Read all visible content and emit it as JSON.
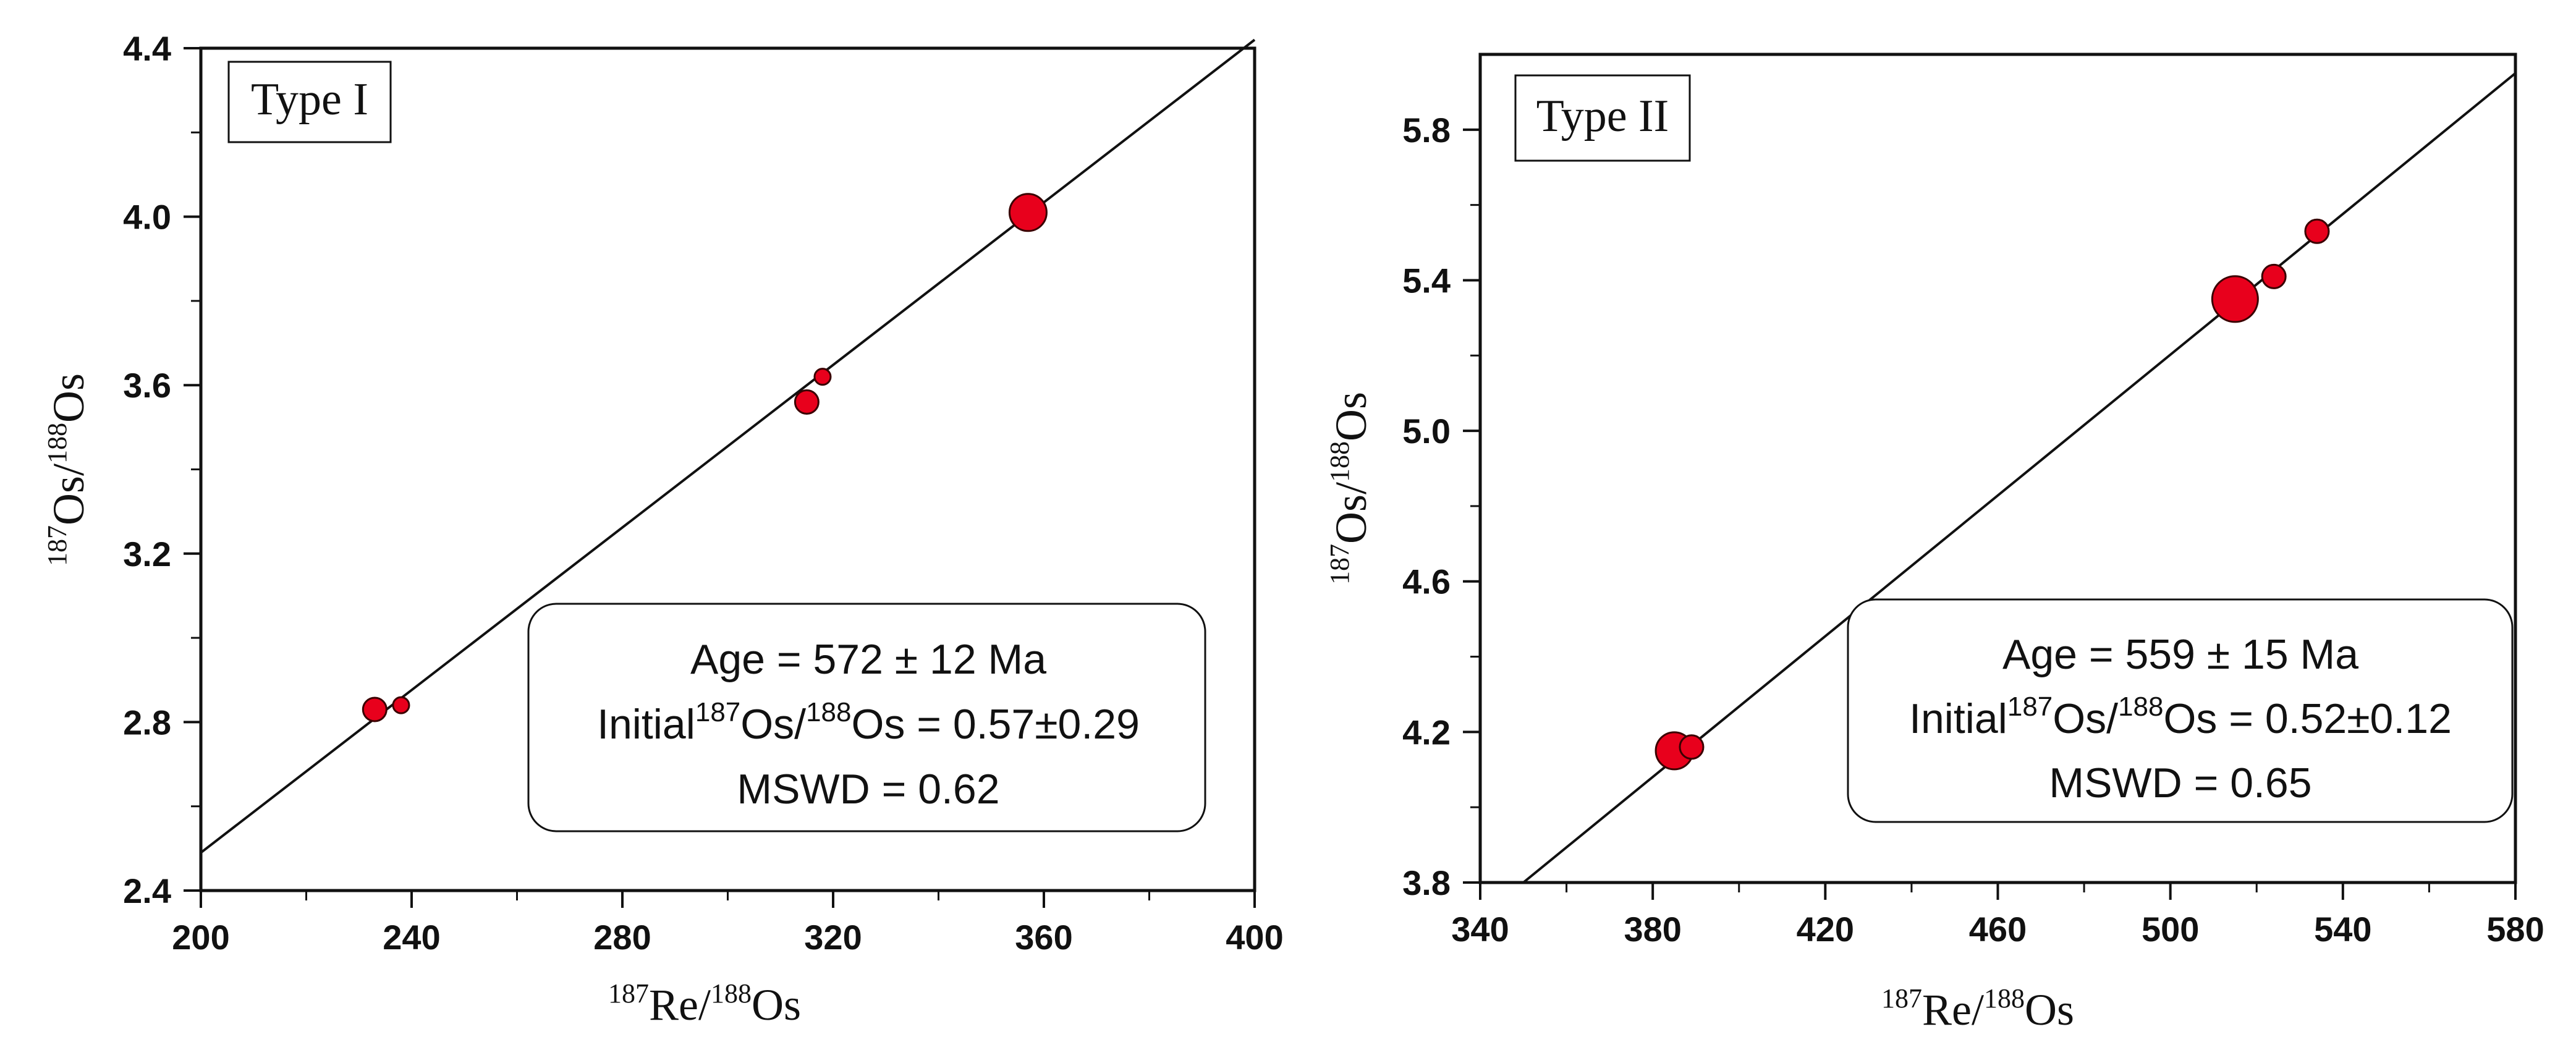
{
  "chart_data": [
    {
      "type": "scatter",
      "panel_label": "Type I",
      "xlabel": {
        "sup1": "187",
        "base1": "Re/",
        "sup2": "188",
        "base2": "Os"
      },
      "ylabel": {
        "sup1": "187",
        "base1": "Os/",
        "sup2": "188",
        "base2": "Os"
      },
      "xlim": [
        200,
        400
      ],
      "ylim": [
        2.4,
        4.4
      ],
      "xticks": [
        "200",
        "240",
        "280",
        "320",
        "360",
        "400"
      ],
      "yticks": [
        "2.4",
        "2.8",
        "3.2",
        "3.6",
        "4.0",
        "4.4"
      ],
      "points": [
        {
          "x": 233,
          "y": 2.83,
          "size": "small"
        },
        {
          "x": 238,
          "y": 2.84,
          "size": "tiny"
        },
        {
          "x": 315,
          "y": 3.56,
          "size": "small"
        },
        {
          "x": 318,
          "y": 3.62,
          "size": "tiny"
        },
        {
          "x": 357,
          "y": 4.01,
          "size": "large"
        }
      ],
      "isochron": {
        "x1": 200,
        "y1": 2.49,
        "x2": 400,
        "y2": 4.42
      },
      "annotation": {
        "age": "Age = 572 ± 12 Ma",
        "initial_prefix": "Initial",
        "initial_sup1": "187",
        "initial_mid": "Os/",
        "initial_sup2": "188",
        "initial_suffix": "Os = 0.57±0.29",
        "mswd": "MSWD = 0.62"
      }
    },
    {
      "type": "scatter",
      "panel_label": "Type II",
      "xlabel": {
        "sup1": "187",
        "base1": "Re/",
        "sup2": "188",
        "base2": "Os"
      },
      "ylabel": {
        "sup1": "187",
        "base1": "Os/",
        "sup2": "188",
        "base2": "Os"
      },
      "xlim": [
        340,
        580
      ],
      "ylim": [
        3.8,
        6.0
      ],
      "xticks": [
        "340",
        "380",
        "420",
        "460",
        "500",
        "540",
        "580"
      ],
      "yticks": [
        "3.8",
        "4.2",
        "4.6",
        "5.0",
        "5.4",
        "5.8"
      ],
      "ytick_values": [
        3.8,
        4.2,
        4.6,
        5.0,
        5.4,
        5.8
      ],
      "points": [
        {
          "x": 385,
          "y": 4.15,
          "size": "large"
        },
        {
          "x": 389,
          "y": 4.16,
          "size": "small"
        },
        {
          "x": 515,
          "y": 5.35,
          "size": "xlarge"
        },
        {
          "x": 524,
          "y": 5.41,
          "size": "small"
        },
        {
          "x": 534,
          "y": 5.53,
          "size": "small"
        }
      ],
      "isochron": {
        "x1": 350,
        "y1": 3.8,
        "x2": 580,
        "y2": 5.95
      },
      "annotation": {
        "age": "Age = 559 ± 15 Ma",
        "initial_prefix": "Initial",
        "initial_sup1": "187",
        "initial_mid": "Os/",
        "initial_sup2": "188",
        "initial_suffix": "Os = 0.52±0.12",
        "mswd": "MSWD = 0.65"
      }
    }
  ],
  "colors": {
    "point_fill": "#e8001c",
    "point_stroke": "#3a0000",
    "axis": "#111111"
  }
}
